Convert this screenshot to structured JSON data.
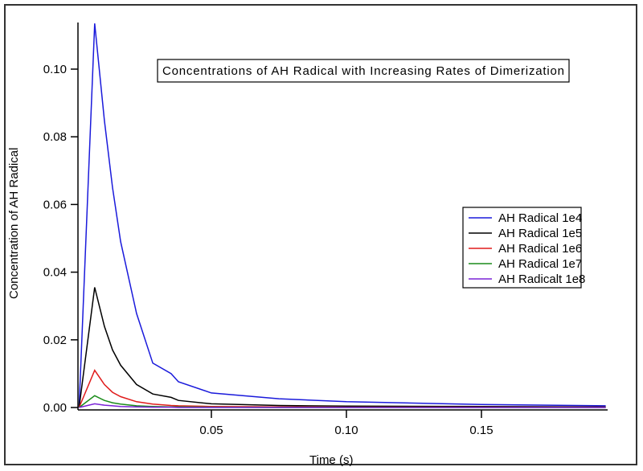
{
  "chart_data": {
    "type": "line",
    "title": "Concentrations of AH Radical with Increasing Rates of Dimerization",
    "xlabel": "Time (s)",
    "ylabel": "Concentration of AH Radical",
    "xlim": [
      0.0006,
      0.196
    ],
    "ylim": [
      0,
      0.1138
    ],
    "xticks": [
      "0.05",
      "0.10",
      "0.15"
    ],
    "xtick_values": [
      0.05,
      0.1,
      0.15
    ],
    "yticks": [
      "0.00",
      "0.02",
      "0.04",
      "0.06",
      "0.08",
      "0.10"
    ],
    "ytick_values": [
      0,
      0.02,
      0.04,
      0.06,
      0.08,
      0.1
    ],
    "grid": false,
    "legend_position": "right",
    "x": [
      0.001,
      0.0068,
      0.0104,
      0.0134,
      0.0164,
      0.0223,
      0.0283,
      0.0351,
      0.0378,
      0.05,
      0.075,
      0.1,
      0.15,
      0.196
    ],
    "series": [
      {
        "name": "AH Radical 1e4",
        "color": "#1a1adb",
        "values": [
          0,
          0.1135,
          0.0848,
          0.065,
          0.049,
          0.0278,
          0.0131,
          0.01,
          0.0076,
          0.0043,
          0.0026,
          0.0017,
          0.0009,
          0.0005
        ]
      },
      {
        "name": "AH Radical 1e5",
        "color": "#000000",
        "values": [
          0,
          0.0355,
          0.024,
          0.017,
          0.0125,
          0.0068,
          0.004,
          0.003,
          0.0021,
          0.0011,
          0.0006,
          0.0004,
          0.0003,
          0.0002
        ]
      },
      {
        "name": "AH Radical 1e6",
        "color": "#e01b1b",
        "values": [
          0,
          0.011,
          0.0068,
          0.0045,
          0.0032,
          0.0017,
          0.001,
          0.0006,
          0.0005,
          0.0003,
          0.0002,
          0.0001,
          0.0001,
          0.0001
        ]
      },
      {
        "name": "AH Radical 1e7",
        "color": "#1a8c1a",
        "values": [
          0,
          0.0035,
          0.0021,
          0.0014,
          0.001,
          0.0005,
          0.0003,
          0.0002,
          0.0002,
          0.0001,
          0,
          0,
          0,
          0
        ]
      },
      {
        "name": "AH Radicalt 1e8",
        "color": "#7a22d6",
        "values": [
          0,
          0.0011,
          0.0007,
          0.0005,
          0.0003,
          0.0002,
          0.0001,
          0.0001,
          0,
          0,
          0,
          0,
          0,
          0
        ]
      }
    ]
  }
}
